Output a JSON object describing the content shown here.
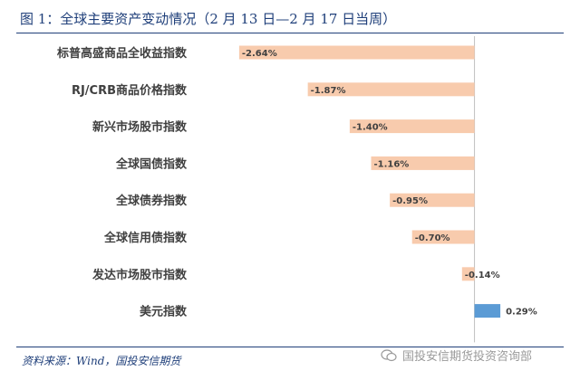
{
  "title": "图 1：全球主要资产变动情况（2 月 13 日—2 月 17 日当周）",
  "source": "资料来源：Wind，国投安信期货",
  "watermark": {
    "text": "国投安信期货投资咨询部",
    "icon": "wechat-icon"
  },
  "colors": {
    "negative": "#f8cbad",
    "positive": "#5b9bd5",
    "title": "#1f3f7a"
  },
  "chart_data": {
    "type": "bar",
    "orientation": "horizontal",
    "categories": [
      "标普高盛商品全收益指数",
      "RJ/CRB商品价格指数",
      "新兴市场股市指数",
      "全球国债指数",
      "全球债券指数",
      "全球信用债指数",
      "发达市场股市指数",
      "美元指数"
    ],
    "values": [
      -2.64,
      -1.87,
      -1.4,
      -1.16,
      -0.95,
      -0.7,
      -0.14,
      0.29
    ],
    "data_labels": [
      "-2.64%",
      "-1.87%",
      "-1.40%",
      "-1.16%",
      "-0.95%",
      "-0.70%",
      "-0.14%",
      "0.29%"
    ],
    "xlim": [
      -2.7,
      0.35
    ],
    "unit": "%",
    "grid": false,
    "legend": "none"
  }
}
